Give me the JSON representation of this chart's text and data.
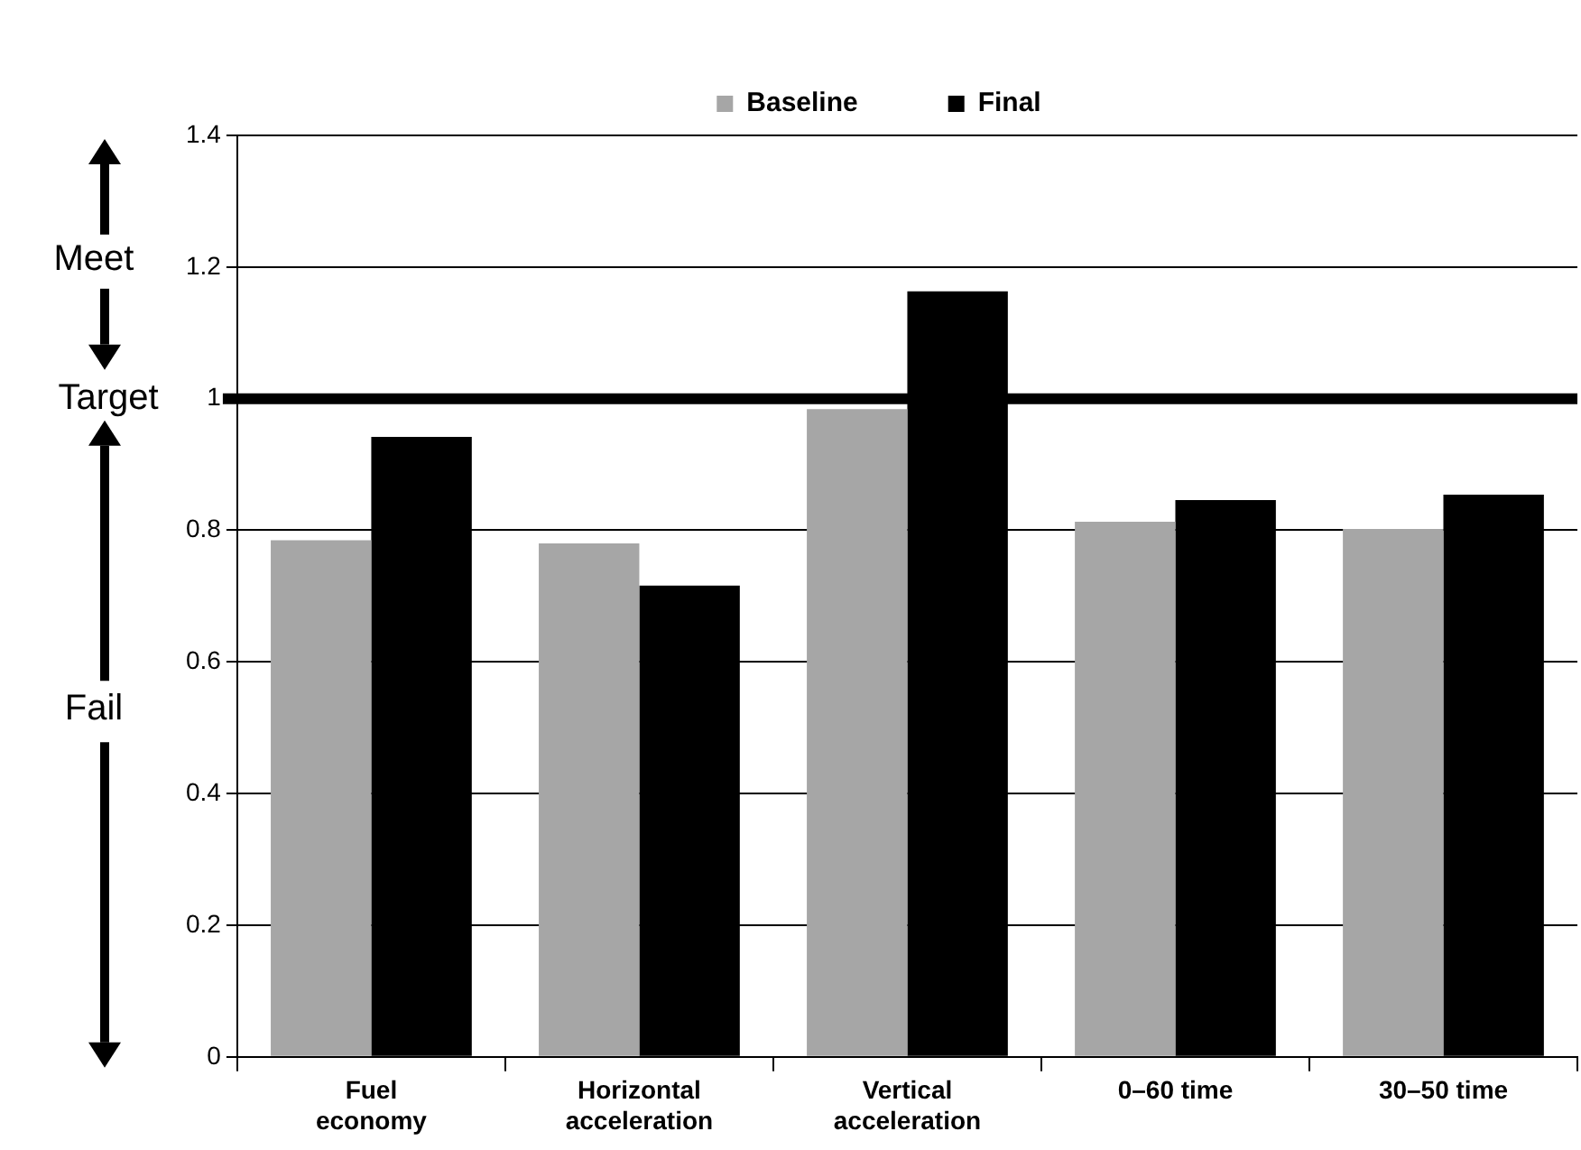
{
  "chart_data": {
    "type": "bar",
    "categories": [
      "Fuel economy",
      "Horizontal acceleration",
      "Vertical acceleration",
      "0–60 time",
      "30–50 time"
    ],
    "series": [
      {
        "name": "Baseline",
        "color": "#a6a6a6",
        "values": [
          0.785,
          0.78,
          0.984,
          0.813,
          0.802
        ]
      },
      {
        "name": "Final",
        "color": "#000000",
        "values": [
          0.942,
          0.716,
          1.163,
          0.846,
          0.854
        ]
      }
    ],
    "ylim": [
      0,
      1.4
    ],
    "yticks": [
      0,
      0.2,
      0.4,
      0.6,
      0.8,
      1,
      1.2,
      1.4
    ],
    "grid": "y",
    "legend": "top",
    "ref_lines": [
      {
        "axis": "y",
        "value": 1,
        "label": "Target",
        "color": "#000000"
      }
    ],
    "annotations": [
      "Meet",
      "Fail"
    ]
  }
}
